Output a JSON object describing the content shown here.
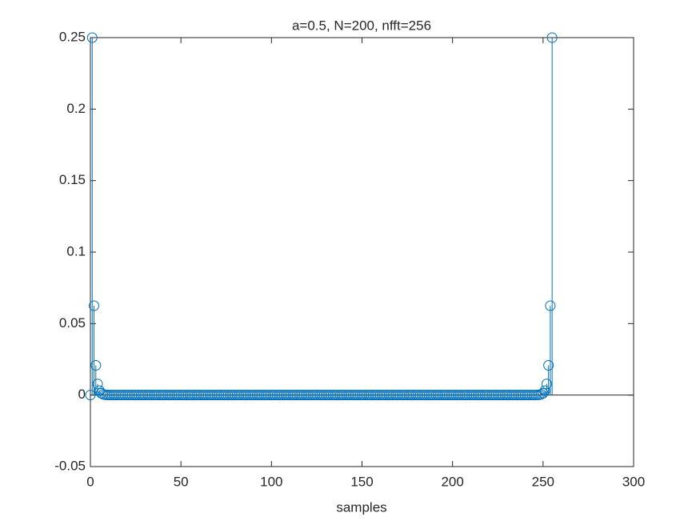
{
  "chart_data": {
    "type": "stem",
    "title": "a=0.5, N=200, nfft=256",
    "x_label": "samples",
    "color": "#0072bd",
    "x": [
      0,
      1,
      2,
      3,
      4,
      5,
      6,
      7,
      8,
      9,
      10,
      11,
      12,
      13,
      14,
      15,
      16,
      17,
      18,
      19,
      20,
      21,
      22,
      23,
      24,
      25,
      26,
      27,
      28,
      29,
      30,
      31,
      32,
      33,
      34,
      35,
      36,
      37,
      38,
      39,
      40,
      41,
      42,
      43,
      44,
      45,
      46,
      47,
      48,
      49,
      50,
      51,
      52,
      53,
      54,
      55,
      56,
      57,
      58,
      59,
      60,
      61,
      62,
      63,
      64,
      65,
      66,
      67,
      68,
      69,
      70,
      71,
      72,
      73,
      74,
      75,
      76,
      77,
      78,
      79,
      80,
      81,
      82,
      83,
      84,
      85,
      86,
      87,
      88,
      89,
      90,
      91,
      92,
      93,
      94,
      95,
      96,
      97,
      98,
      99,
      100,
      101,
      102,
      103,
      104,
      105,
      106,
      107,
      108,
      109,
      110,
      111,
      112,
      113,
      114,
      115,
      116,
      117,
      118,
      119,
      120,
      121,
      122,
      123,
      124,
      125,
      126,
      127,
      128,
      129,
      130,
      131,
      132,
      133,
      134,
      135,
      136,
      137,
      138,
      139,
      140,
      141,
      142,
      143,
      144,
      145,
      146,
      147,
      148,
      149,
      150,
      151,
      152,
      153,
      154,
      155,
      156,
      157,
      158,
      159,
      160,
      161,
      162,
      163,
      164,
      165,
      166,
      167,
      168,
      169,
      170,
      171,
      172,
      173,
      174,
      175,
      176,
      177,
      178,
      179,
      180,
      181,
      182,
      183,
      184,
      185,
      186,
      187,
      188,
      189,
      190,
      191,
      192,
      193,
      194,
      195,
      196,
      197,
      198,
      199,
      200,
      201,
      202,
      203,
      204,
      205,
      206,
      207,
      208,
      209,
      210,
      211,
      212,
      213,
      214,
      215,
      216,
      217,
      218,
      219,
      220,
      221,
      222,
      223,
      224,
      225,
      226,
      227,
      228,
      229,
      230,
      231,
      232,
      233,
      234,
      235,
      236,
      237,
      238,
      239,
      240,
      241,
      242,
      243,
      244,
      245,
      246,
      247,
      248,
      249,
      250,
      251,
      252,
      253,
      254,
      255
    ],
    "values": [
      0,
      0.25,
      0.0625,
      0.0208,
      0.0078,
      0.0031,
      0.0013,
      0.0006,
      0.0002,
      0.0001,
      0,
      0,
      0,
      0,
      0,
      0,
      0,
      0,
      0,
      0,
      0,
      0,
      0,
      0,
      0,
      0,
      0,
      0,
      0,
      0,
      0,
      0,
      0,
      0,
      0,
      0,
      0,
      0,
      0,
      0,
      0,
      0,
      0,
      0,
      0,
      0,
      0,
      0,
      0,
      0,
      0,
      0,
      0,
      0,
      0,
      0,
      0,
      0,
      0,
      0,
      0,
      0,
      0,
      0,
      0,
      0,
      0,
      0,
      0,
      0,
      0,
      0,
      0,
      0,
      0,
      0,
      0,
      0,
      0,
      0,
      0,
      0,
      0,
      0,
      0,
      0,
      0,
      0,
      0,
      0,
      0,
      0,
      0,
      0,
      0,
      0,
      0,
      0,
      0,
      0,
      0,
      0,
      0,
      0,
      0,
      0,
      0,
      0,
      0,
      0,
      0,
      0,
      0,
      0,
      0,
      0,
      0,
      0,
      0,
      0,
      0,
      0,
      0,
      0,
      0,
      0,
      0,
      0,
      0,
      0,
      0,
      0,
      0,
      0,
      0,
      0,
      0,
      0,
      0,
      0,
      0,
      0,
      0,
      0,
      0,
      0,
      0,
      0,
      0,
      0,
      0,
      0,
      0,
      0,
      0,
      0,
      0,
      0,
      0,
      0,
      0,
      0,
      0,
      0,
      0,
      0,
      0,
      0,
      0,
      0,
      0,
      0,
      0,
      0,
      0,
      0,
      0,
      0,
      0,
      0,
      0,
      0,
      0,
      0,
      0,
      0,
      0,
      0,
      0,
      0,
      0,
      0,
      0,
      0,
      0,
      0,
      0,
      0,
      0,
      0,
      0,
      0,
      0,
      0,
      0,
      0,
      0,
      0,
      0,
      0,
      0,
      0,
      0,
      0,
      0,
      0,
      0,
      0,
      0,
      0,
      0,
      0,
      0,
      0,
      0,
      0,
      0,
      0,
      0,
      0,
      0,
      0,
      0,
      0,
      0,
      0,
      0,
      0,
      0,
      0,
      0,
      0,
      0,
      0,
      0,
      0,
      0,
      0.0001,
      0.0002,
      0.0006,
      0.0013,
      0.0031,
      0.0078,
      0.0208,
      0.0625,
      0.25
    ],
    "xlim": [
      0,
      300
    ],
    "xticks": [
      0,
      50,
      100,
      150,
      200,
      250,
      300
    ],
    "ylim": [
      -0.05,
      0.25
    ],
    "yticks": [
      -0.05,
      0,
      0.05,
      0.1,
      0.15,
      0.2,
      0.25
    ]
  }
}
